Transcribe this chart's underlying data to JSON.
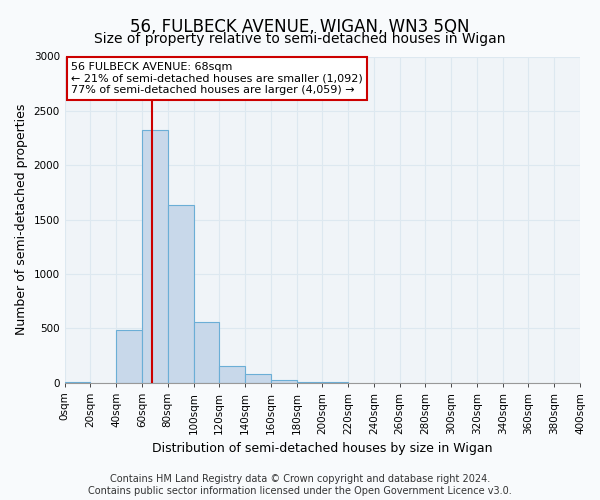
{
  "title": "56, FULBECK AVENUE, WIGAN, WN3 5QN",
  "subtitle": "Size of property relative to semi-detached houses in Wigan",
  "xlabel": "Distribution of semi-detached houses by size in Wigan",
  "ylabel": "Number of semi-detached properties",
  "bin_edges": [
    0,
    20,
    40,
    60,
    80,
    100,
    120,
    140,
    160,
    180,
    200,
    220,
    240,
    260,
    280,
    300,
    320,
    340,
    360,
    380,
    400
  ],
  "bin_counts": [
    5,
    0,
    480,
    2320,
    1630,
    560,
    150,
    80,
    20,
    5,
    2,
    0,
    0,
    0,
    0,
    0,
    0,
    0,
    0,
    0
  ],
  "bar_color": "#c8d8ea",
  "bar_edge_color": "#6baed6",
  "vline_x": 68,
  "vline_color": "#cc0000",
  "annotation_title": "56 FULBECK AVENUE: 68sqm",
  "annotation_line1": "← 21% of semi-detached houses are smaller (1,092)",
  "annotation_line2": "77% of semi-detached houses are larger (4,059) →",
  "annotation_box_facecolor": "#ffffff",
  "annotation_box_edgecolor": "#cc0000",
  "ylim": [
    0,
    3000
  ],
  "xlim": [
    0,
    400
  ],
  "yticks": [
    0,
    500,
    1000,
    1500,
    2000,
    2500,
    3000
  ],
  "xtick_positions": [
    0,
    20,
    40,
    60,
    80,
    100,
    120,
    140,
    160,
    180,
    200,
    220,
    240,
    260,
    280,
    300,
    320,
    340,
    360,
    380,
    400
  ],
  "xtick_labels": [
    "0sqm",
    "20sqm",
    "40sqm",
    "60sqm",
    "80sqm",
    "100sqm",
    "120sqm",
    "140sqm",
    "160sqm",
    "180sqm",
    "200sqm",
    "220sqm",
    "240sqm",
    "260sqm",
    "280sqm",
    "300sqm",
    "320sqm",
    "340sqm",
    "360sqm",
    "380sqm",
    "400sqm"
  ],
  "footer1": "Contains HM Land Registry data © Crown copyright and database right 2024.",
  "footer2": "Contains public sector information licensed under the Open Government Licence v3.0.",
  "background_color": "#f8fafc",
  "plot_bg_color": "#f0f4f8",
  "grid_color": "#dde8f0",
  "title_fontsize": 12,
  "subtitle_fontsize": 10,
  "axis_label_fontsize": 9,
  "tick_fontsize": 7.5,
  "annotation_fontsize": 8,
  "footer_fontsize": 7
}
